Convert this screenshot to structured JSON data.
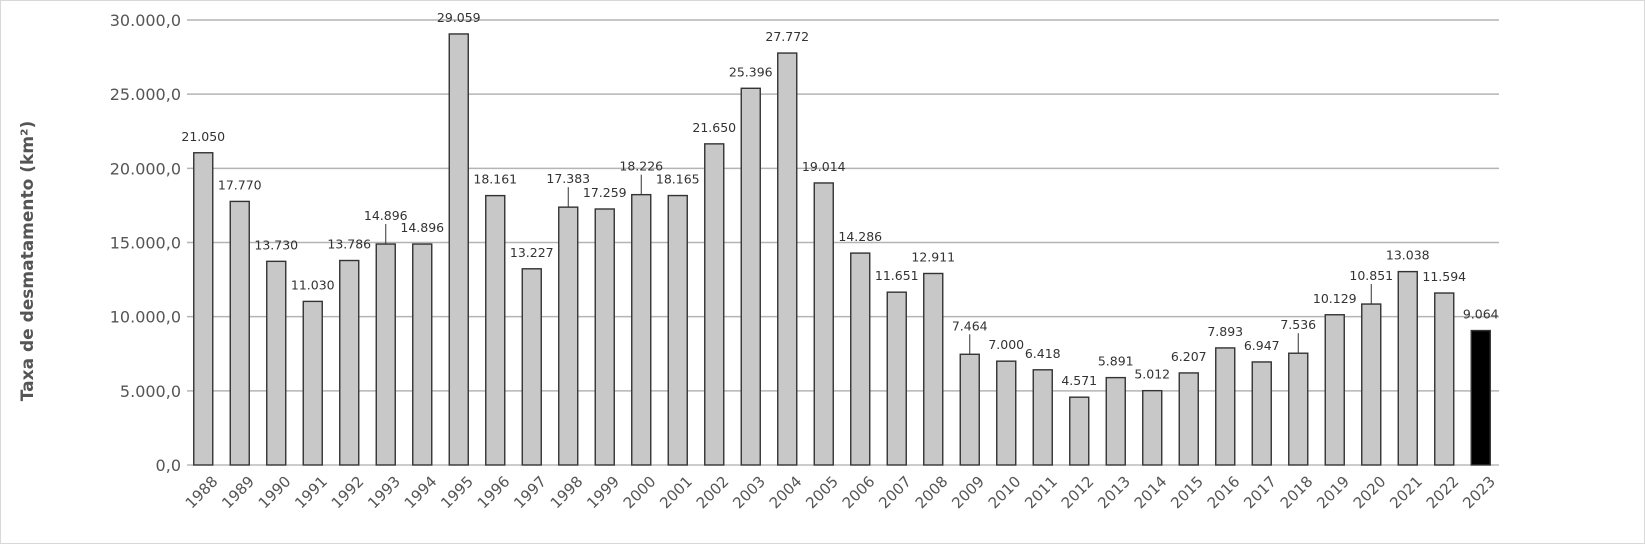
{
  "chart_data": {
    "type": "bar",
    "title": "",
    "xlabel": "",
    "ylabel": "Taxa de desmatamento (km²)",
    "ylim": [
      0,
      30000
    ],
    "yticks": [
      {
        "value": 0,
        "label": "0,0"
      },
      {
        "value": 5000,
        "label": "5.000,0"
      },
      {
        "value": 10000,
        "label": "10.000,0"
      },
      {
        "value": 15000,
        "label": "15.000,0"
      },
      {
        "value": 20000,
        "label": "20.000,0"
      },
      {
        "value": 25000,
        "label": "25.000,0"
      },
      {
        "value": 30000,
        "label": "30.000,0"
      }
    ],
    "grid": "horizontal",
    "legend": "none",
    "colors": {
      "bar": "#c8c8c8",
      "highlight": "#000000",
      "outline": "#333333",
      "grid": "#b4b4b4"
    },
    "highlight_category": "2023",
    "categories": [
      "1988",
      "1989",
      "1990",
      "1991",
      "1992",
      "1993",
      "1994",
      "1995",
      "1996",
      "1997",
      "1998",
      "1999",
      "2000",
      "2001",
      "2002",
      "2003",
      "2004",
      "2005",
      "2006",
      "2007",
      "2008",
      "2009",
      "2010",
      "2011",
      "2012",
      "2013",
      "2014",
      "2015",
      "2016",
      "2017",
      "2018",
      "2019",
      "2020",
      "2021",
      "2022",
      "2023"
    ],
    "values": [
      21050,
      17770,
      13730,
      11030,
      13786,
      14896,
      14896,
      29059,
      18161,
      13227,
      17383,
      17259,
      18226,
      18165,
      21650,
      25396,
      27772,
      19014,
      14286,
      11651,
      12911,
      7464,
      7000,
      6418,
      4571,
      5891,
      5012,
      6207,
      7893,
      6947,
      7536,
      10129,
      10851,
      13038,
      11594,
      9064
    ],
    "value_labels": [
      "21.050",
      "17.770",
      "13.730",
      "11.030",
      "13.786",
      "14.896",
      "14.896",
      "29.059",
      "18.161",
      "13.227",
      "17.383",
      "17.259",
      "18.226",
      "18.165",
      "21.650",
      "25.396",
      "27.772",
      "19.014",
      "14.286",
      "11.651",
      "12.911",
      "7.464",
      "7.000",
      "6.418",
      "4.571",
      "5.891",
      "5.012",
      "6.207",
      "7.893",
      "6.947",
      "7.536",
      "10.129",
      "10.851",
      "13.038",
      "11.594",
      "9.064"
    ],
    "leader_line_categories": [
      "1993",
      "1998",
      "2000",
      "2009",
      "2018",
      "2020"
    ]
  }
}
